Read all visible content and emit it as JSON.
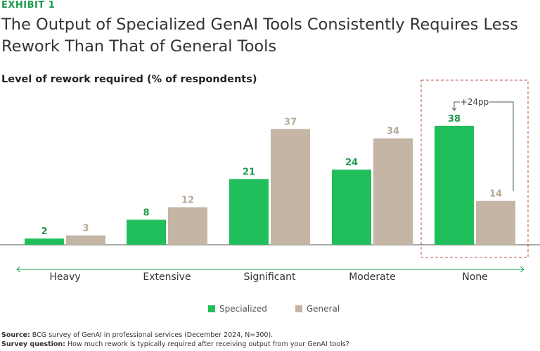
{
  "exhibit_label": "EXHIBIT 1",
  "title": "The Output of Specialized GenAI Tools Consistently Requires Less Rework Than That of General Tools",
  "subtitle": "Level of rework required (% of respondents)",
  "colors": {
    "specialized": "#21bf5b",
    "general": "#c4b5a4",
    "accent": "#1e9a4c",
    "highlight_box": "#c0504d"
  },
  "chart_data": {
    "type": "bar",
    "categories": [
      "Heavy",
      "Extensive",
      "Significant",
      "Moderate",
      "None"
    ],
    "series": [
      {
        "name": "Specialized",
        "values": [
          2,
          8,
          21,
          24,
          38
        ]
      },
      {
        "name": "General",
        "values": [
          3,
          12,
          37,
          34,
          14
        ]
      }
    ],
    "ylim": [
      0,
      40
    ],
    "annotation": {
      "text": "+24pp",
      "category": "None"
    },
    "highlight_category": "None",
    "legend_position": "bottom"
  },
  "legend": {
    "specialized": "Specialized",
    "general": "General"
  },
  "source": {
    "label": "Source:",
    "text": "BCG survey of GenAI in professional services (December 2024, N=300).",
    "question_label": "Survey question:",
    "question_text": "How much rework is typically required after receiving output from your GenAI tools?"
  }
}
